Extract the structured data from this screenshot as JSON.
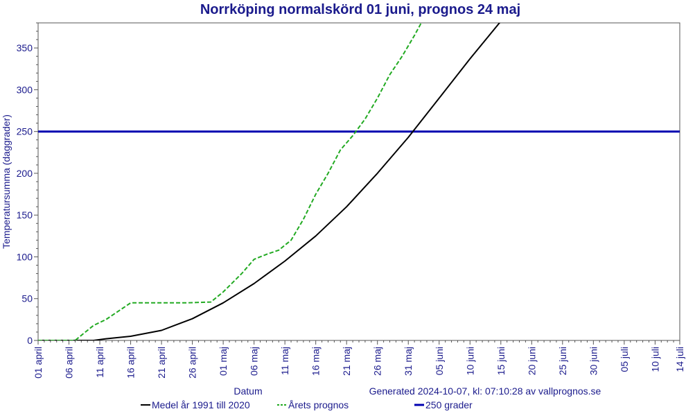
{
  "chart_data": {
    "type": "line",
    "title": "Norrköping normalskörd 01 juni, prognos 24 maj",
    "xlabel": "Datum",
    "ylabel": "Temperatursumma (daggrader)",
    "generated": "Generated 2024-10-07, kl: 07:10:28 av vallprognos.se",
    "ylim": [
      0,
      380
    ],
    "yticks": [
      0,
      50,
      100,
      150,
      200,
      250,
      300,
      350
    ],
    "xlim": [
      "2024-04-01",
      "2024-07-14"
    ],
    "xticks": [
      "01 april",
      "06 april",
      "11 april",
      "16 april",
      "21 april",
      "26 april",
      "01 maj",
      "06 maj",
      "11 maj",
      "16 maj",
      "21 maj",
      "26 maj",
      "31 maj",
      "05 juni",
      "10 juni",
      "15 juni",
      "20 juni",
      "25 juni",
      "30 juni",
      "05 juli",
      "10 juli",
      "14 juli"
    ],
    "grid": false,
    "legend_position": "bottom",
    "series": [
      {
        "name": "Medel år 1991 till 2020",
        "color": "#000000",
        "style": "solid",
        "points": [
          [
            "2024-04-01",
            0
          ],
          [
            "2024-04-10",
            0
          ],
          [
            "2024-04-12",
            2
          ],
          [
            "2024-04-16",
            5
          ],
          [
            "2024-04-21",
            12
          ],
          [
            "2024-04-26",
            26
          ],
          [
            "2024-05-01",
            45
          ],
          [
            "2024-05-06",
            68
          ],
          [
            "2024-05-11",
            95
          ],
          [
            "2024-05-16",
            125
          ],
          [
            "2024-05-21",
            160
          ],
          [
            "2024-05-26",
            200
          ],
          [
            "2024-05-31",
            243
          ],
          [
            "2024-06-05",
            290
          ],
          [
            "2024-06-10",
            337
          ],
          [
            "2024-06-15",
            382
          ]
        ]
      },
      {
        "name": "Årets prognos",
        "color": "#22aa22",
        "style": "dashed",
        "points": [
          [
            "2024-04-01",
            0
          ],
          [
            "2024-04-07",
            0
          ],
          [
            "2024-04-09",
            12
          ],
          [
            "2024-04-10",
            18
          ],
          [
            "2024-04-12",
            25
          ],
          [
            "2024-04-14",
            35
          ],
          [
            "2024-04-16",
            45
          ],
          [
            "2024-04-20",
            45
          ],
          [
            "2024-04-25",
            45
          ],
          [
            "2024-04-29",
            46
          ],
          [
            "2024-05-01",
            58
          ],
          [
            "2024-05-04",
            80
          ],
          [
            "2024-05-06",
            97
          ],
          [
            "2024-05-08",
            103
          ],
          [
            "2024-05-10",
            108
          ],
          [
            "2024-05-12",
            120
          ],
          [
            "2024-05-14",
            145
          ],
          [
            "2024-05-16",
            175
          ],
          [
            "2024-05-18",
            200
          ],
          [
            "2024-05-20",
            228
          ],
          [
            "2024-05-22",
            245
          ],
          [
            "2024-05-24",
            265
          ],
          [
            "2024-05-26",
            290
          ],
          [
            "2024-05-28",
            318
          ],
          [
            "2024-05-30",
            340
          ],
          [
            "2024-06-01",
            365
          ],
          [
            "2024-06-03",
            392
          ]
        ]
      },
      {
        "name": "250 grader",
        "color": "#0000b0",
        "style": "solid",
        "points": [
          [
            "2024-04-01",
            250
          ],
          [
            "2024-07-14",
            250
          ]
        ]
      }
    ]
  }
}
